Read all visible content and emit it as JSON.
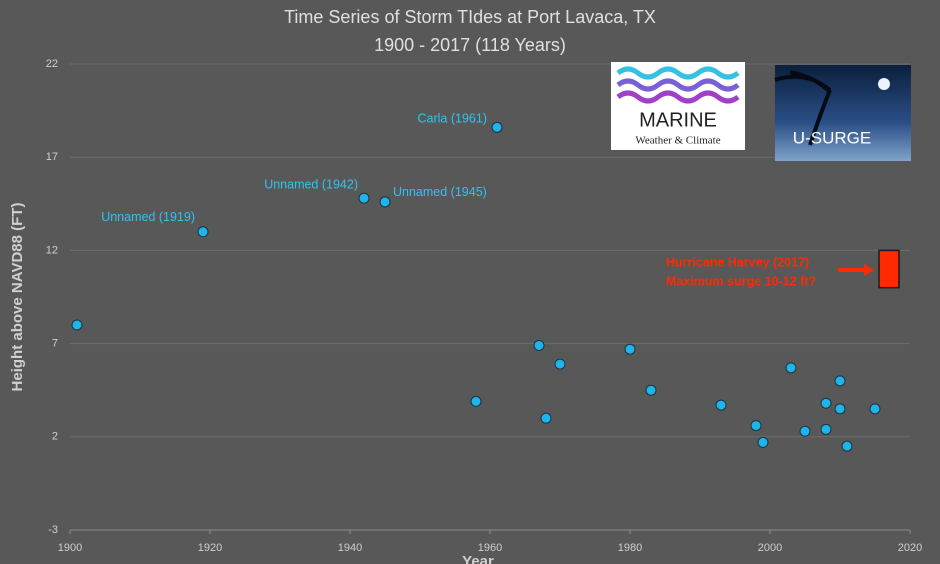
{
  "chart_data": {
    "type": "scatter",
    "title": "Time Series of Storm TIdes at Port Lavaca, TX",
    "subtitle": "1900 - 2017  (118 Years)",
    "x_label": "Year",
    "y_label": "Height above NAVD88 (FT)",
    "xlim": [
      1900,
      2020
    ],
    "xticks": [
      1900,
      1920,
      1940,
      1960,
      1980,
      2000,
      2020
    ],
    "ylim": [
      -3,
      22
    ],
    "yticks": [
      -3,
      2,
      7,
      12,
      17,
      22
    ],
    "grid": true,
    "color": "#1fb4ea",
    "x": [
      1901,
      1919,
      1942,
      1945,
      1958,
      1961,
      1967,
      1968,
      1970,
      1980,
      1983,
      1993,
      1998,
      1999,
      2003,
      2005,
      2008,
      2008,
      2010,
      2010,
      2011,
      2015
    ],
    "values": [
      8.0,
      13.0,
      14.8,
      14.6,
      3.9,
      18.6,
      6.9,
      3.0,
      5.9,
      6.7,
      4.5,
      3.7,
      2.6,
      1.7,
      5.7,
      2.3,
      3.8,
      2.4,
      5.0,
      3.5,
      1.5,
      3.5
    ],
    "point_labels": [
      null,
      "Unnamed (1919)",
      "Unnamed (1942)",
      "Unnamed (1945)",
      null,
      "Carla (1961)",
      null,
      null,
      null,
      null,
      null,
      null,
      null,
      null,
      null,
      null,
      null,
      null,
      null,
      null,
      null,
      null
    ],
    "harvey": {
      "x": 2017,
      "low": 10,
      "high": 12,
      "color": "#ff2a00",
      "text": [
        "Hurricane Harvey (2017)",
        "Maximum surge 10-12 ft?"
      ]
    },
    "logos": {
      "marine": "MARINE",
      "marine_sub": "Weather & Climate",
      "usurge": "U-SURGE"
    }
  }
}
